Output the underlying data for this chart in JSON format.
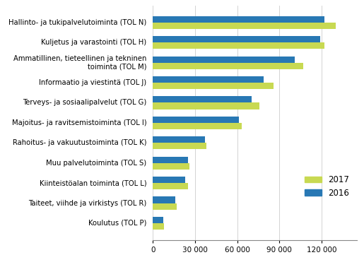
{
  "categories": [
    "Hallinto- ja tukipalvelutoiminta (TOL N)",
    "Kuljetus ja varastointi (TOL H)",
    "Ammatillinen, tieteellinen ja tekninen\ntoiminta (TOL M)",
    "Informaatio ja viestintä (TOL J)",
    "Terveys- ja sosiaalipalvelut (TOL G)",
    "Majoitus- ja ravitsemistoiminta (TOL I)",
    "Rahoitus- ja vakuutustoiminta (TOL K)",
    "Muu palvelutoiminta (TOL S)",
    "Kiinteistöalan toiminta (TOL L)",
    "Taiteet, viihde ja virkistys (TOL R)",
    "Koulutus (TOL P)"
  ],
  "values_2017": [
    130000,
    122000,
    107000,
    86000,
    76000,
    63000,
    38000,
    26000,
    25000,
    17000,
    8000
  ],
  "values_2016": [
    122000,
    119000,
    101000,
    79000,
    70000,
    61000,
    37000,
    25000,
    23000,
    16000,
    7500
  ],
  "color_2017": "#c8d952",
  "color_2016": "#2878b4",
  "legend_labels": [
    "2017",
    "2016"
  ],
  "xlim": [
    0,
    145000
  ],
  "xticks": [
    0,
    30000,
    60000,
    90000,
    120000
  ],
  "xticklabels": [
    "0",
    "30 000",
    "60 000",
    "90 000",
    "120 000"
  ],
  "bar_height": 0.32,
  "figsize": [
    5.15,
    3.78
  ],
  "dpi": 100,
  "fontsize_labels": 7.2,
  "fontsize_ticks": 7.5,
  "fontsize_legend": 8.5,
  "background_color": "#ffffff"
}
